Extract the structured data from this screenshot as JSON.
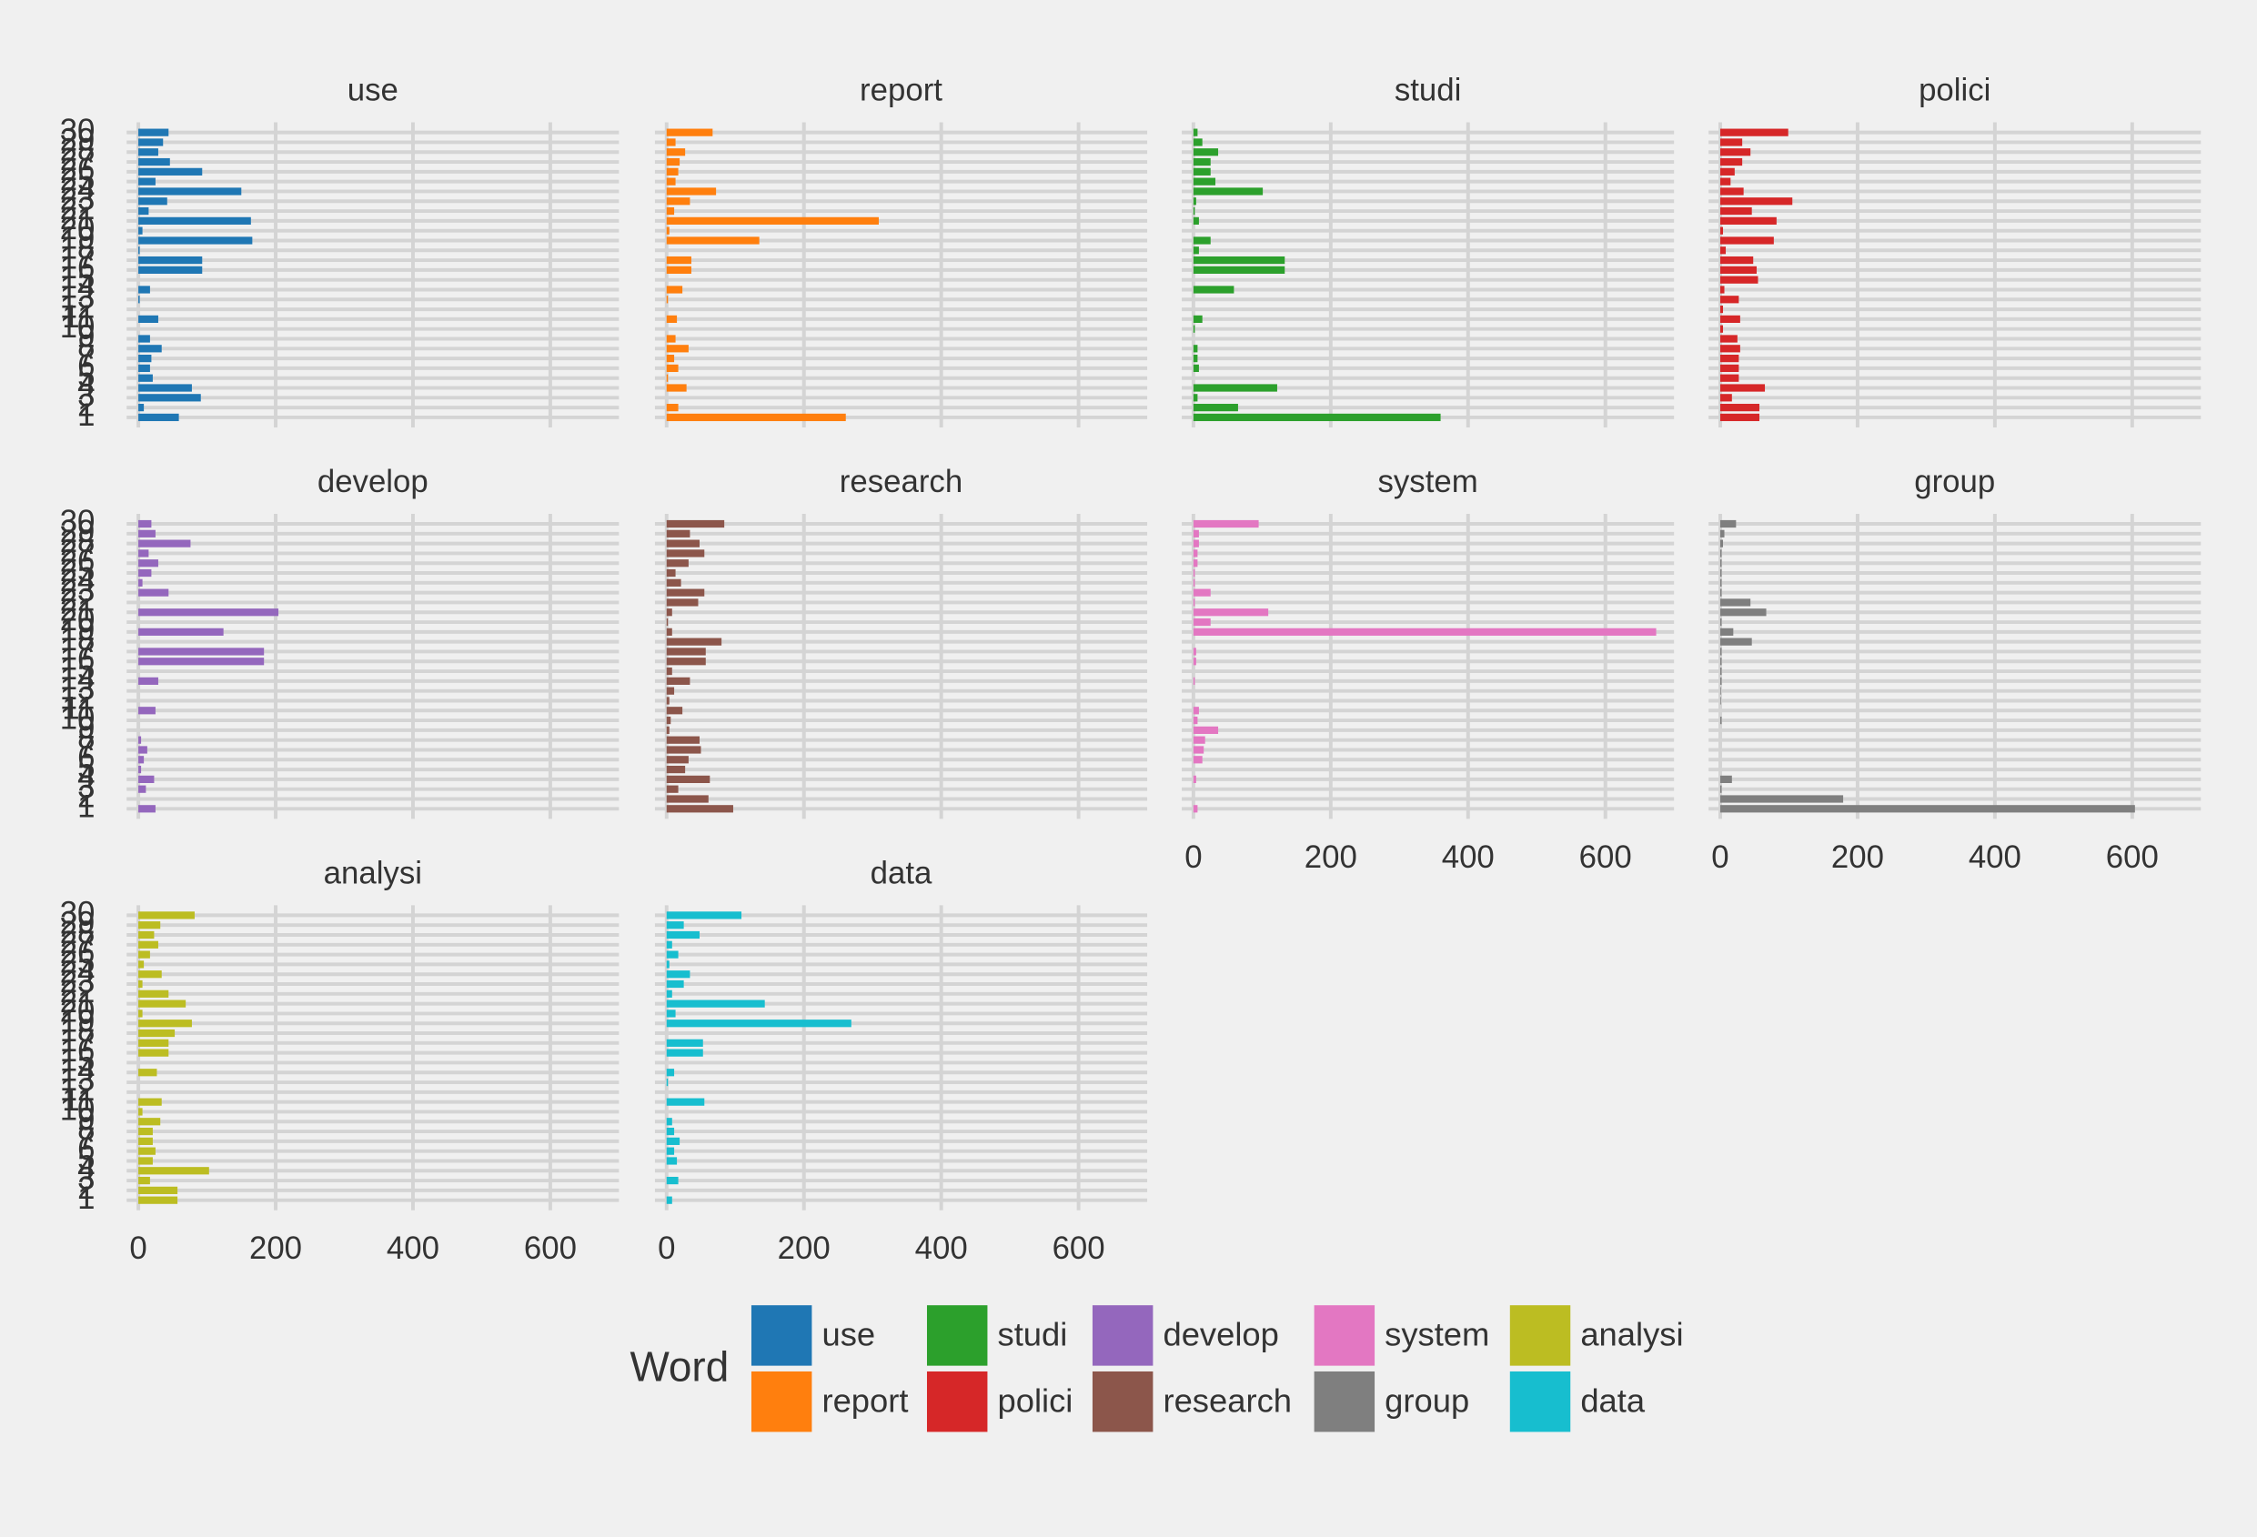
{
  "chart_data": {
    "type": "bar",
    "legend_title": "Word",
    "grid": true,
    "categories": [
      "1",
      "2",
      "3",
      "4",
      "5",
      "6",
      "7",
      "8",
      "9",
      "10",
      "11",
      "12",
      "13",
      "14",
      "15",
      "16",
      "17",
      "18",
      "19",
      "20",
      "21",
      "22",
      "23",
      "24",
      "25",
      "26",
      "27",
      "28",
      "29",
      "30"
    ],
    "xlim": [
      -17,
      700
    ],
    "xticks": [
      0,
      200,
      400,
      600
    ],
    "series": [
      {
        "name": "use",
        "color": "#1f77b4",
        "values": [
          59,
          8,
          91,
          78,
          21,
          17,
          19,
          34,
          17,
          0,
          29,
          0,
          2,
          17,
          0,
          93,
          93,
          2,
          166,
          6,
          164,
          15,
          42,
          150,
          25,
          93,
          46,
          29,
          36,
          44
        ]
      },
      {
        "name": "report",
        "color": "#ff7f0e",
        "values": [
          261,
          17,
          0,
          29,
          2,
          17,
          11,
          32,
          13,
          0,
          15,
          0,
          2,
          23,
          0,
          36,
          36,
          0,
          135,
          4,
          309,
          11,
          34,
          72,
          13,
          17,
          19,
          27,
          13,
          67
        ]
      },
      {
        "name": "studi",
        "color": "#2ca02c",
        "values": [
          360,
          65,
          6,
          122,
          0,
          8,
          6,
          6,
          0,
          2,
          13,
          0,
          0,
          59,
          0,
          133,
          133,
          8,
          25,
          0,
          8,
          2,
          4,
          101,
          32,
          25,
          25,
          36,
          13,
          6
        ]
      },
      {
        "name": "polici",
        "color": "#d62728",
        "values": [
          57,
          57,
          17,
          65,
          27,
          27,
          27,
          29,
          25,
          4,
          29,
          4,
          27,
          6,
          55,
          53,
          48,
          8,
          78,
          4,
          82,
          46,
          105,
          34,
          15,
          21,
          32,
          44,
          32,
          99
        ]
      },
      {
        "name": "develop",
        "color": "#9467bd",
        "values": [
          25,
          0,
          11,
          23,
          4,
          8,
          13,
          4,
          0,
          0,
          25,
          0,
          0,
          29,
          0,
          183,
          183,
          0,
          124,
          0,
          204,
          0,
          44,
          6,
          19,
          29,
          15,
          76,
          25,
          19
        ]
      },
      {
        "name": "research",
        "color": "#8c564b",
        "values": [
          97,
          61,
          17,
          63,
          27,
          32,
          50,
          48,
          4,
          6,
          23,
          4,
          11,
          34,
          8,
          57,
          57,
          80,
          8,
          2,
          8,
          46,
          55,
          21,
          13,
          32,
          55,
          48,
          34,
          84
        ]
      },
      {
        "name": "system",
        "color": "#e377c2",
        "values": [
          6,
          0,
          0,
          4,
          0,
          13,
          15,
          17,
          36,
          6,
          8,
          0,
          0,
          2,
          0,
          4,
          4,
          0,
          674,
          25,
          109,
          2,
          25,
          2,
          2,
          6,
          6,
          8,
          8,
          95
        ]
      },
      {
        "name": "group",
        "color": "#7f7f7f",
        "values": [
          604,
          179,
          2,
          17,
          0,
          0,
          0,
          0,
          0,
          2,
          0,
          1,
          1,
          2,
          2,
          2,
          2,
          46,
          19,
          2,
          67,
          44,
          2,
          2,
          2,
          2,
          2,
          4,
          6,
          23
        ]
      },
      {
        "name": "analysi",
        "color": "#bcbd22",
        "values": [
          57,
          57,
          17,
          103,
          21,
          25,
          21,
          21,
          32,
          6,
          34,
          0,
          0,
          27,
          0,
          44,
          44,
          53,
          78,
          6,
          69,
          44,
          6,
          34,
          8,
          17,
          29,
          23,
          32,
          82
        ]
      },
      {
        "name": "data",
        "color": "#17becf",
        "values": [
          8,
          0,
          17,
          0,
          15,
          11,
          19,
          11,
          8,
          0,
          55,
          0,
          2,
          11,
          0,
          53,
          53,
          0,
          269,
          13,
          143,
          8,
          25,
          34,
          4,
          17,
          8,
          48,
          25,
          109
        ]
      }
    ]
  }
}
